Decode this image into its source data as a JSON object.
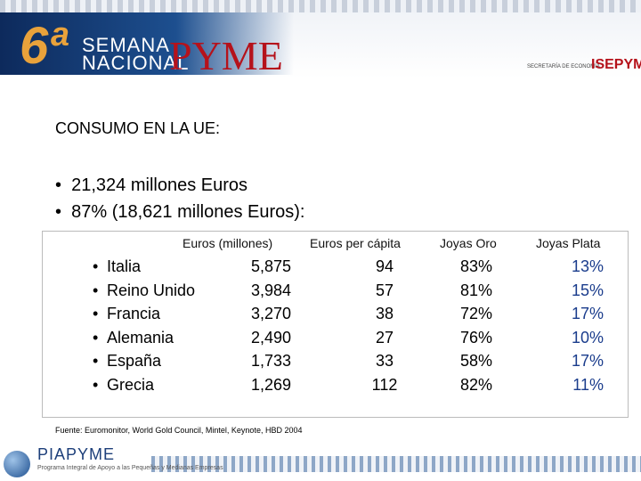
{
  "header": {
    "number": "6ª",
    "line1": "SEMANA",
    "line2": "NACIONAL",
    "brand": "PYME",
    "ministry": "SECRETARÍA DE ECONOMÍA",
    "logo_right": "ISEPYME"
  },
  "title": "CONSUMO EN LA UE:",
  "bullets": [
    "21,324 millones Euros",
    "87% (18,621 millones Euros):"
  ],
  "table": {
    "headers": [
      "Euros (millones)",
      "Euros per cápita",
      "Joyas Oro",
      "Joyas Plata"
    ],
    "rows": [
      [
        "Italia",
        "5,875",
        "94",
        "83%",
        "13%"
      ],
      [
        "Reino Unido",
        "3,984",
        "57",
        "81%",
        "15%"
      ],
      [
        "Francia",
        "3,270",
        "38",
        "72%",
        "17%"
      ],
      [
        "Alemania",
        "2,490",
        "27",
        "76%",
        "10%"
      ],
      [
        "España",
        "1,733",
        "33",
        "58%",
        "17%"
      ],
      [
        "Grecia",
        "1,269",
        "112",
        "82%",
        "11%"
      ]
    ]
  },
  "source": "Fuente: Euromonitor, World Gold Council, Mintel, Keynote, HBD 2004",
  "footer": {
    "logo": "PIAPYME",
    "tagline": "Programa Integral de Apoyo a las Pequeñas y Medianas Empresas"
  }
}
